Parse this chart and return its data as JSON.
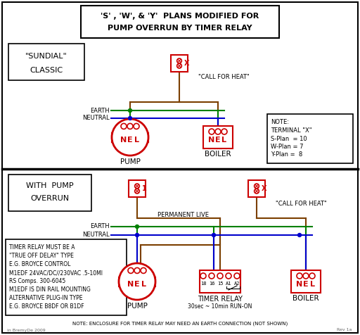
{
  "title_line1": "'S' , 'W', & 'Y'  PLANS MODIFIED FOR",
  "title_line2": "PUMP OVERRUN BY TIMER RELAY",
  "bg_color": "#ffffff",
  "red": "#cc0000",
  "green": "#008000",
  "blue": "#0000cc",
  "brown": "#7B3F00",
  "black": "#000000",
  "gray": "#666666",
  "sundial_label": "\"SUNDIAL\"\nCLASSIC",
  "pump_overrun_label": "WITH  PUMP\nOVERRUN",
  "note_lines": [
    "NOTE:",
    "TERMINAL \"X\"",
    "S-Plan  = 10",
    "W-Plan = 7",
    "Y-Plan =  8"
  ],
  "timer_note_lines": [
    "TIMER RELAY MUST BE A",
    "\"TRUE OFF DELAY\" TYPE",
    "E.G. BROYCE CONTROL",
    "M1EDF 24VAC/DC//230VAC .5-10MI",
    "RS Comps. 300-6045",
    "M1EDF IS DIN RAIL MOUNTING",
    "ALTERNATIVE PLUG-IN TYPE",
    "E.G. BROYCE B8DF OR B1DF"
  ],
  "bottom_note": "NOTE: ENCLOSURE FOR TIMER RELAY MAY NEED AN EARTH CONNECTION (NOT SHOWN)",
  "copyright": "in BremyDe 2009",
  "rev": "Rev 1a"
}
